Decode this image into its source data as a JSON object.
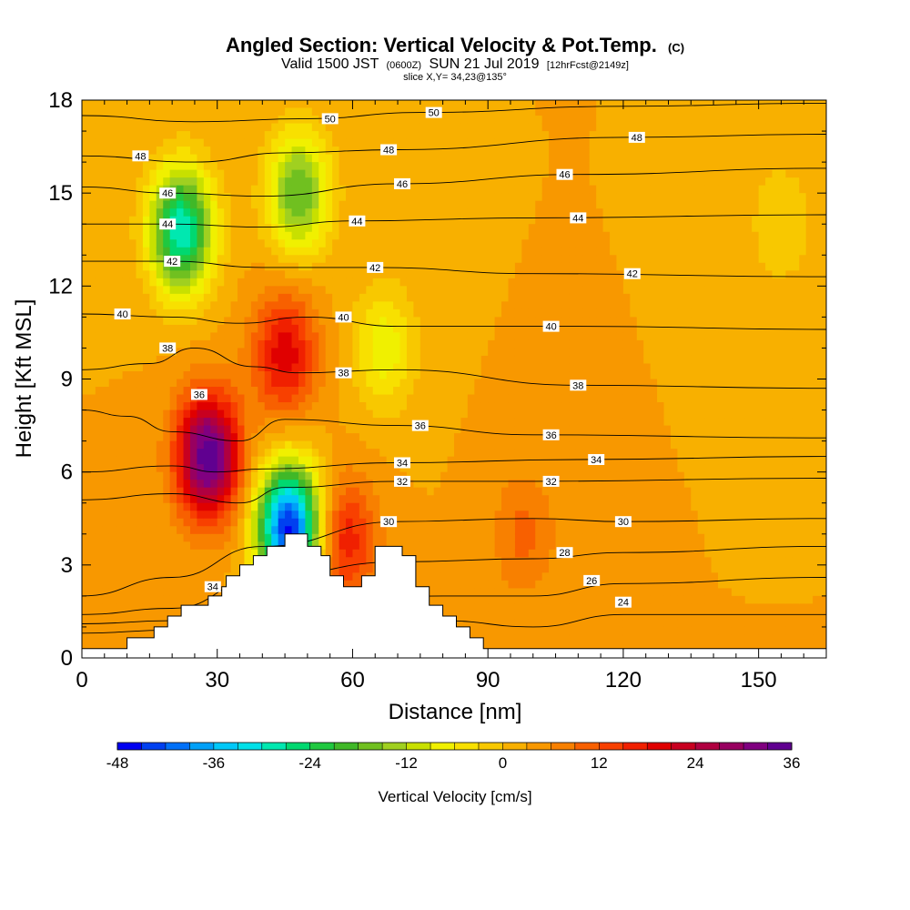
{
  "header": {
    "title": "Angled Section: Vertical Velocity & Pot.Temp.",
    "title_unit": "(C)",
    "valid_prefix": "Valid 1500 JST",
    "valid_z": "(0600Z)",
    "valid_date": "SUN 21 Jul 2019",
    "forecast": "[12hrFcst@2149z]",
    "slice": "slice X,Y= 34,23@135°"
  },
  "chart_data": {
    "type": "heatmap",
    "title": "Angled Section: Vertical Velocity & Pot.Temp.",
    "xlabel": "Distance [nm]",
    "ylabel": "Height [Kft MSL]",
    "xlim": [
      0,
      165
    ],
    "ylim": [
      0,
      18
    ],
    "x_ticks": [
      0,
      30,
      60,
      90,
      120,
      150
    ],
    "y_ticks": [
      0,
      3,
      6,
      9,
      12,
      15,
      18
    ],
    "grid": false,
    "colorbar": {
      "label": "Vertical Velocity [cm/s]",
      "ticks": [
        -48,
        -36,
        -24,
        -12,
        0,
        12,
        24,
        36
      ],
      "levels": [
        -48,
        -45,
        -42,
        -39,
        -36,
        -33,
        -30,
        -27,
        -24,
        -21,
        -18,
        -15,
        -12,
        -9,
        -6,
        -3,
        0,
        3,
        6,
        9,
        12,
        15,
        18,
        21,
        24,
        27,
        30,
        33,
        36
      ],
      "colors": [
        "#0000f0",
        "#0040f0",
        "#0070f8",
        "#00a0f8",
        "#00c8f8",
        "#00e0e8",
        "#00e8b0",
        "#00d870",
        "#20c840",
        "#40b828",
        "#70c020",
        "#a0d020",
        "#c8e000",
        "#f0f000",
        "#f8e000",
        "#f8c800",
        "#f8b000",
        "#f89800",
        "#f88000",
        "#f86000",
        "#f84000",
        "#f02000",
        "#e00000",
        "#c80020",
        "#b00040",
        "#980060",
        "#800080",
        "#600090"
      ],
      "position": "bottom"
    },
    "velocity_features": [
      {
        "kind": "background",
        "value": 3
      },
      {
        "kind": "updraft",
        "x": 28,
        "y": 6.5,
        "peak": 36
      },
      {
        "kind": "updraft",
        "x": 45,
        "y": 9.8,
        "peak": 20
      },
      {
        "kind": "updraft",
        "x": 58,
        "y": 3.8,
        "peak": 18
      },
      {
        "kind": "updraft",
        "x": 98,
        "y": 4,
        "peak": 10
      },
      {
        "kind": "downdraft",
        "x": 22,
        "y": 13.8,
        "peak": -30
      },
      {
        "kind": "downdraft",
        "x": 46,
        "y": 4.2,
        "peak": -46
      },
      {
        "kind": "downdraft",
        "x": 48,
        "y": 15,
        "peak": -18
      },
      {
        "kind": "downdraft",
        "x": 67,
        "y": 10,
        "peak": -8
      },
      {
        "kind": "downdraft",
        "x": 155,
        "y": 14,
        "peak": -3
      }
    ],
    "isentropes": [
      {
        "theta": 24,
        "points": [
          [
            0,
            0.8
          ],
          [
            20,
            0.9
          ],
          [
            40,
            1.3
          ],
          [
            80,
            1.2
          ],
          [
            100,
            1.0
          ],
          [
            120,
            1.4
          ],
          [
            165,
            1.4
          ]
        ]
      },
      {
        "theta": 26,
        "points": [
          [
            0,
            1.1
          ],
          [
            20,
            1.2
          ],
          [
            40,
            1.9
          ],
          [
            80,
            2.0
          ],
          [
            100,
            2.0
          ],
          [
            120,
            2.4
          ],
          [
            165,
            2.6
          ]
        ]
      },
      {
        "theta": 28,
        "points": [
          [
            0,
            1.4
          ],
          [
            20,
            1.6
          ],
          [
            40,
            2.6
          ],
          [
            70,
            3.1
          ],
          [
            100,
            3.2
          ],
          [
            120,
            3.4
          ],
          [
            165,
            3.6
          ]
        ]
      },
      {
        "theta": 30,
        "points": [
          [
            0,
            2.0
          ],
          [
            20,
            2.6
          ],
          [
            40,
            3.6
          ],
          [
            70,
            4.4
          ],
          [
            100,
            4.5
          ],
          [
            120,
            4.4
          ],
          [
            165,
            4.5
          ]
        ]
      },
      {
        "theta": 32,
        "points": [
          [
            0,
            5.1
          ],
          [
            20,
            5.3
          ],
          [
            35,
            5.0
          ],
          [
            45,
            5.5
          ],
          [
            70,
            5.7
          ],
          [
            100,
            5.7
          ],
          [
            165,
            5.8
          ]
        ]
      },
      {
        "theta": 34,
        "points": [
          [
            0,
            6.0
          ],
          [
            20,
            6.2
          ],
          [
            30,
            6.0
          ],
          [
            40,
            6.1
          ],
          [
            70,
            6.3
          ],
          [
            110,
            6.4
          ],
          [
            165,
            6.5
          ]
        ]
      },
      {
        "theta": 36,
        "points": [
          [
            0,
            8.0
          ],
          [
            10,
            7.8
          ],
          [
            20,
            7.3
          ],
          [
            35,
            7.0
          ],
          [
            45,
            7.7
          ],
          [
            70,
            7.5
          ],
          [
            100,
            7.2
          ],
          [
            165,
            7.1
          ]
        ]
      },
      {
        "theta": 38,
        "points": [
          [
            0,
            9.3
          ],
          [
            15,
            9.5
          ],
          [
            25,
            10.0
          ],
          [
            38,
            9.4
          ],
          [
            48,
            9.2
          ],
          [
            70,
            9.3
          ],
          [
            110,
            8.8
          ],
          [
            165,
            8.7
          ]
        ]
      },
      {
        "theta": 40,
        "points": [
          [
            0,
            11.1
          ],
          [
            20,
            11.0
          ],
          [
            35,
            10.8
          ],
          [
            50,
            11.0
          ],
          [
            70,
            10.7
          ],
          [
            110,
            10.7
          ],
          [
            165,
            10.6
          ]
        ]
      },
      {
        "theta": 42,
        "points": [
          [
            0,
            12.8
          ],
          [
            20,
            12.8
          ],
          [
            40,
            12.6
          ],
          [
            65,
            12.6
          ],
          [
            100,
            12.4
          ],
          [
            165,
            12.3
          ]
        ]
      },
      {
        "theta": 44,
        "points": [
          [
            0,
            14.0
          ],
          [
            20,
            14.0
          ],
          [
            40,
            13.9
          ],
          [
            60,
            14.1
          ],
          [
            100,
            14.2
          ],
          [
            165,
            14.3
          ]
        ]
      },
      {
        "theta": 46,
        "points": [
          [
            0,
            15.2
          ],
          [
            20,
            15.0
          ],
          [
            40,
            14.9
          ],
          [
            70,
            15.3
          ],
          [
            110,
            15.6
          ],
          [
            165,
            15.8
          ]
        ]
      },
      {
        "theta": 48,
        "points": [
          [
            0,
            16.2
          ],
          [
            25,
            16.0
          ],
          [
            45,
            16.3
          ],
          [
            70,
            16.4
          ],
          [
            120,
            16.8
          ],
          [
            165,
            16.9
          ]
        ]
      },
      {
        "theta": 50,
        "points": [
          [
            0,
            17.5
          ],
          [
            25,
            17.3
          ],
          [
            50,
            17.4
          ],
          [
            75,
            17.6
          ],
          [
            120,
            17.8
          ],
          [
            165,
            17.9
          ]
        ]
      }
    ],
    "contour_labels": [
      {
        "text": "48",
        "x": 13,
        "y": 16.2
      },
      {
        "text": "46",
        "x": 19,
        "y": 15.0
      },
      {
        "text": "44",
        "x": 19,
        "y": 14.0
      },
      {
        "text": "42",
        "x": 20,
        "y": 12.8
      },
      {
        "text": "40",
        "x": 9,
        "y": 11.1
      },
      {
        "text": "38",
        "x": 19,
        "y": 10.0
      },
      {
        "text": "36",
        "x": 26,
        "y": 8.5
      },
      {
        "text": "34",
        "x": 29,
        "y": 2.3
      },
      {
        "text": "50",
        "x": 55,
        "y": 17.4
      },
      {
        "text": "50",
        "x": 78,
        "y": 17.6
      },
      {
        "text": "48",
        "x": 68,
        "y": 16.4
      },
      {
        "text": "48",
        "x": 123,
        "y": 16.8
      },
      {
        "text": "46",
        "x": 71,
        "y": 15.3
      },
      {
        "text": "46",
        "x": 107,
        "y": 15.6
      },
      {
        "text": "44",
        "x": 61,
        "y": 14.1
      },
      {
        "text": "44",
        "x": 110,
        "y": 14.2
      },
      {
        "text": "42",
        "x": 65,
        "y": 12.6
      },
      {
        "text": "42",
        "x": 122,
        "y": 12.4
      },
      {
        "text": "40",
        "x": 58,
        "y": 11.0
      },
      {
        "text": "40",
        "x": 104,
        "y": 10.7
      },
      {
        "text": "38",
        "x": 58,
        "y": 9.2
      },
      {
        "text": "38",
        "x": 110,
        "y": 8.8
      },
      {
        "text": "36",
        "x": 75,
        "y": 7.5
      },
      {
        "text": "36",
        "x": 104,
        "y": 7.2
      },
      {
        "text": "34",
        "x": 71,
        "y": 6.3
      },
      {
        "text": "34",
        "x": 114,
        "y": 6.4
      },
      {
        "text": "32",
        "x": 71,
        "y": 5.7
      },
      {
        "text": "32",
        "x": 104,
        "y": 5.7
      },
      {
        "text": "30",
        "x": 68,
        "y": 4.4
      },
      {
        "text": "30",
        "x": 120,
        "y": 4.4
      },
      {
        "text": "28",
        "x": 107,
        "y": 3.4
      },
      {
        "text": "26",
        "x": 113,
        "y": 2.5
      },
      {
        "text": "24",
        "x": 120,
        "y": 1.8
      }
    ],
    "terrain": [
      [
        0,
        0.3
      ],
      [
        10,
        0.3
      ],
      [
        10,
        0.65
      ],
      [
        16,
        0.65
      ],
      [
        16,
        1.0
      ],
      [
        19,
        1.0
      ],
      [
        19,
        1.35
      ],
      [
        22,
        1.35
      ],
      [
        22,
        1.7
      ],
      [
        28,
        1.7
      ],
      [
        28,
        2.0
      ],
      [
        31,
        2.0
      ],
      [
        31,
        2.3
      ],
      [
        32,
        2.3
      ],
      [
        32,
        2.65
      ],
      [
        35,
        2.65
      ],
      [
        35,
        3.0
      ],
      [
        38,
        3.0
      ],
      [
        38,
        3.3
      ],
      [
        41,
        3.3
      ],
      [
        41,
        3.6
      ],
      [
        45,
        3.6
      ],
      [
        45,
        4.0
      ],
      [
        50,
        4.0
      ],
      [
        50,
        3.6
      ],
      [
        53,
        3.6
      ],
      [
        53,
        3.3
      ],
      [
        55,
        3.3
      ],
      [
        55,
        2.65
      ],
      [
        58,
        2.65
      ],
      [
        58,
        2.3
      ],
      [
        62,
        2.3
      ],
      [
        62,
        2.65
      ],
      [
        65,
        2.65
      ],
      [
        65,
        3.6
      ],
      [
        71,
        3.6
      ],
      [
        71,
        3.3
      ],
      [
        74,
        3.3
      ],
      [
        74,
        2.3
      ],
      [
        77,
        2.3
      ],
      [
        77,
        1.7
      ],
      [
        80,
        1.7
      ],
      [
        80,
        1.35
      ],
      [
        83,
        1.35
      ],
      [
        83,
        1.0
      ],
      [
        86,
        1.0
      ],
      [
        86,
        0.65
      ],
      [
        89,
        0.65
      ],
      [
        89,
        0.3
      ],
      [
        165,
        0.3
      ],
      [
        165,
        0
      ],
      [
        0,
        0
      ]
    ]
  }
}
